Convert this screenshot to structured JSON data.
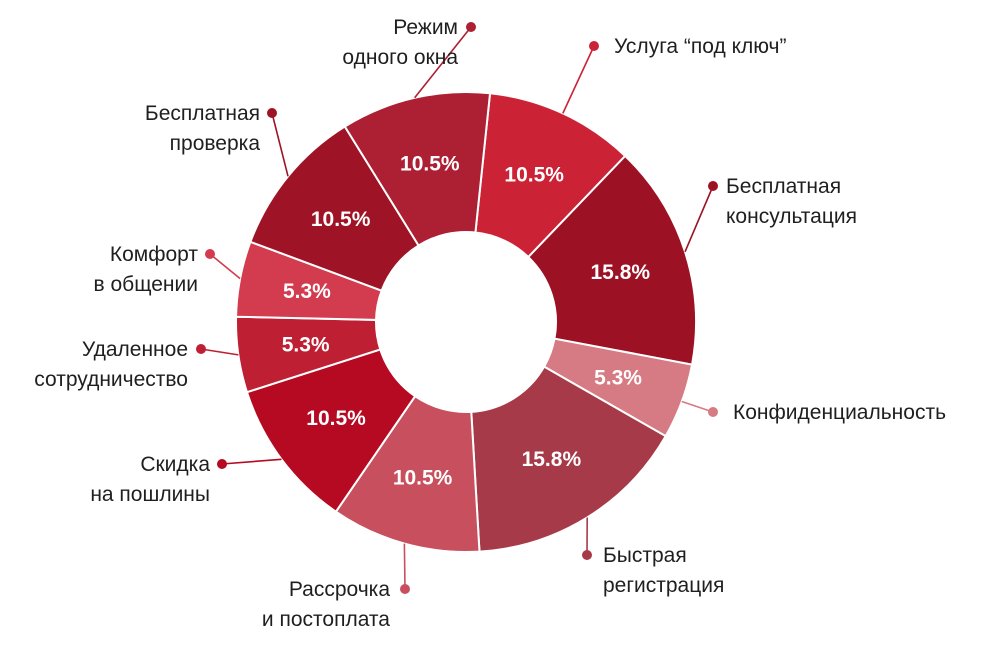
{
  "chart_data": {
    "type": "pie",
    "donut": true,
    "slices": [
      {
        "label": "Услуга “под ключ”",
        "value": 10.5,
        "value_label": "10.5%",
        "color": "#cc2236"
      },
      {
        "label": "Бесплатная консультация",
        "value": 15.8,
        "value_label": "15.8%",
        "color": "#9c1224"
      },
      {
        "label": "Конфиденциальность",
        "value": 5.3,
        "value_label": "5.3%",
        "color": "#d67a83"
      },
      {
        "label": "Быстрая регистрация",
        "value": 15.8,
        "value_label": "15.8%",
        "color": "#a63a48"
      },
      {
        "label": "Рассрочка и постоплата",
        "value": 10.5,
        "value_label": "10.5%",
        "color": "#c8505e"
      },
      {
        "label": "Скидка на пошлины",
        "value": 10.5,
        "value_label": "10.5%",
        "color": "#b50a22"
      },
      {
        "label": "Удаленное сотрудничество",
        "value": 5.3,
        "value_label": "5.3%",
        "color": "#bf1f33"
      },
      {
        "label": "Комфорт в общении",
        "value": 5.3,
        "value_label": "5.3%",
        "color": "#d33c4e"
      },
      {
        "label": "Бесплатная проверка",
        "value": 10.5,
        "value_label": "10.5%",
        "color": "#9e1325"
      },
      {
        "label": "Режим одного окна",
        "value": 10.5,
        "value_label": "10.5%",
        "color": "#ad1f33"
      }
    ],
    "labels": [
      {
        "lines": [
          "Услуга “под ключ”"
        ]
      },
      {
        "lines": [
          "Бесплатная",
          "консультация"
        ]
      },
      {
        "lines": [
          "Конфиденциальность"
        ]
      },
      {
        "lines": [
          "Быстрая",
          "регистрация"
        ]
      },
      {
        "lines": [
          "Рассрочка",
          "и постоплата"
        ]
      },
      {
        "lines": [
          "Скидка",
          "на пошлины"
        ]
      },
      {
        "lines": [
          "Удаленное",
          "сотрудничество"
        ]
      },
      {
        "lines": [
          "Комфорт",
          "в общении"
        ]
      },
      {
        "lines": [
          "Бесплатная",
          "проверка"
        ]
      },
      {
        "lines": [
          "Режим",
          "одного окна"
        ]
      }
    ]
  }
}
